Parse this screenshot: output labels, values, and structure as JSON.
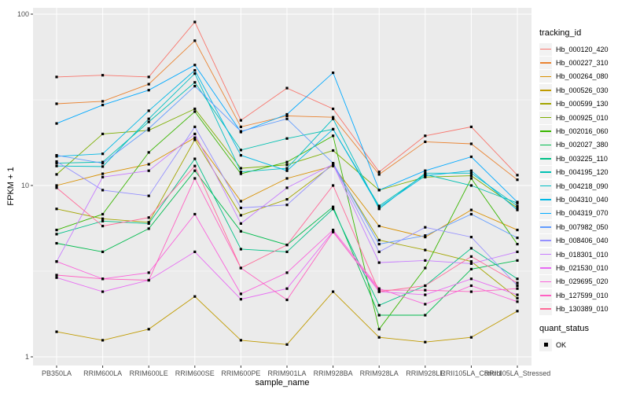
{
  "figure": {
    "panel_bg": "#EBEBEB",
    "grid_color": "#FFFFFF",
    "tick_color": "#333333",
    "tick_label_color": "#4D4D4D",
    "key_bg": "#F2F2F2"
  },
  "chart_data": {
    "type": "line",
    "title": "",
    "xlabel": "sample_name",
    "ylabel": "FPKM + 1",
    "y_scale": "log10",
    "y_ticks": [
      "1",
      "10",
      "100"
    ],
    "ylim": [
      1,
      100
    ],
    "grid": true,
    "point_marker": {
      "shape": "square",
      "color": "#000000"
    },
    "categories": [
      "PB350LA",
      "RRIM600LA",
      "RRIM600LE",
      "RRIM600SE",
      "RRIM600PE",
      "RRIM901LA",
      "RRIM928BA",
      "RRIM928LA",
      "RRIM928LE",
      "RRII105LA_Control",
      "RRII105LA_Stressed"
    ],
    "legend": {
      "title": "tracking_id",
      "position": "right"
    },
    "quant_legend": {
      "title": "quant_status",
      "items": [
        {
          "label": "OK",
          "marker": "black-square"
        }
      ]
    },
    "series": [
      {
        "name": "Hb_000120_420",
        "color": "#F8766D",
        "values": [
          43,
          44,
          43,
          90,
          24,
          37,
          28,
          12,
          19.5,
          22,
          11.5
        ]
      },
      {
        "name": "Hb_000227_310",
        "color": "#EA8331",
        "values": [
          30,
          31,
          39,
          70,
          22,
          25.5,
          25,
          11.6,
          18,
          17.5,
          10.8
        ]
      },
      {
        "name": "Hb_000264_080",
        "color": "#D89000",
        "values": [
          10,
          11.7,
          13.3,
          19,
          8.1,
          11,
          13,
          5.8,
          5.0,
          7.2,
          5.5
        ]
      },
      {
        "name": "Hb_000526_030",
        "color": "#C09B00",
        "values": [
          1.4,
          1.25,
          1.45,
          2.25,
          1.25,
          1.18,
          2.4,
          1.3,
          1.22,
          1.3,
          1.85
        ]
      },
      {
        "name": "Hb_000599_130",
        "color": "#A3A500",
        "values": [
          7.3,
          6.4,
          6.1,
          18.5,
          6.7,
          8.3,
          13.2,
          4.8,
          4.2,
          3.6,
          2.2
        ]
      },
      {
        "name": "Hb_000925_010",
        "color": "#7CAE00",
        "values": [
          11.6,
          20,
          21,
          28,
          12.6,
          13.2,
          16,
          9.4,
          11.2,
          11.4,
          7.4
        ]
      },
      {
        "name": "Hb_002016_060",
        "color": "#39B600",
        "values": [
          5.5,
          6.8,
          15.6,
          27,
          11.7,
          13.7,
          19.5,
          1.45,
          3.3,
          11,
          4.55
        ]
      },
      {
        "name": "Hb_002027_380",
        "color": "#00BB4E",
        "values": [
          4.6,
          4.1,
          5.6,
          12.2,
          5.4,
          4.5,
          7.5,
          1.75,
          1.75,
          3.25,
          3.65
        ]
      },
      {
        "name": "Hb_003225_110",
        "color": "#00C087",
        "values": [
          5.2,
          6.2,
          6.0,
          14.3,
          4.25,
          4.1,
          7.3,
          2.0,
          2.6,
          4.3,
          2.85
        ]
      },
      {
        "name": "Hb_004195_120",
        "color": "#00C0B2",
        "values": [
          13.5,
          13.7,
          23.5,
          40,
          16.1,
          18.8,
          21.3,
          7.6,
          11.6,
          10,
          7.9
        ]
      },
      {
        "name": "Hb_004218_090",
        "color": "#00BFC4",
        "values": [
          13,
          12.9,
          24.5,
          45,
          12,
          12.6,
          24.5,
          7.3,
          11.8,
          11.8,
          7.6
        ]
      },
      {
        "name": "Hb_004310_040",
        "color": "#00B8E5",
        "values": [
          14.8,
          15.3,
          27.3,
          47,
          15,
          12.2,
          21.3,
          7.45,
          11.4,
          12.2,
          7.2
        ]
      },
      {
        "name": "Hb_004319_070",
        "color": "#00A9FF",
        "values": [
          23,
          29.5,
          36,
          50.5,
          20.5,
          26,
          45.5,
          9.4,
          12.2,
          14.7,
          8.0
        ]
      },
      {
        "name": "Hb_007982_050",
        "color": "#619CFF",
        "values": [
          15,
          13.5,
          21.5,
          38,
          20.7,
          24.5,
          13.5,
          4.55,
          5.1,
          6.8,
          4.95
        ]
      },
      {
        "name": "Hb_008406_040",
        "color": "#9590FF",
        "values": [
          13.8,
          9.4,
          8.7,
          22,
          7.4,
          7.7,
          13.4,
          4.1,
          5.7,
          5.0,
          2.6
        ]
      },
      {
        "name": "Hb_018301_010",
        "color": "#C77CFF",
        "values": [
          3.6,
          11.2,
          12.2,
          20,
          6.0,
          9.7,
          13.3,
          3.55,
          3.65,
          3.5,
          4.1
        ]
      },
      {
        "name": "Hb_021530_010",
        "color": "#E76BF3",
        "values": [
          2.9,
          2.4,
          2.8,
          4.1,
          2.17,
          2.5,
          5.4,
          2.4,
          2.3,
          2.85,
          2.3
        ]
      },
      {
        "name": "Hb_029695_020",
        "color": "#FA62DB",
        "values": [
          3.6,
          2.85,
          3.1,
          6.8,
          2.33,
          3.1,
          5.5,
          2.5,
          2.03,
          2.6,
          2.1
        ]
      },
      {
        "name": "Hb_127599_010",
        "color": "#FF61C2",
        "values": [
          3.0,
          2.85,
          2.8,
          11.0,
          3.3,
          2.15,
          5.35,
          2.45,
          2.45,
          2.4,
          2.5
        ]
      },
      {
        "name": "Hb_130389_010",
        "color": "#FF6A98",
        "values": [
          9.7,
          5.8,
          6.5,
          13.0,
          3.3,
          4.5,
          10.0,
          2.4,
          2.6,
          3.85,
          2.7
        ]
      }
    ]
  }
}
